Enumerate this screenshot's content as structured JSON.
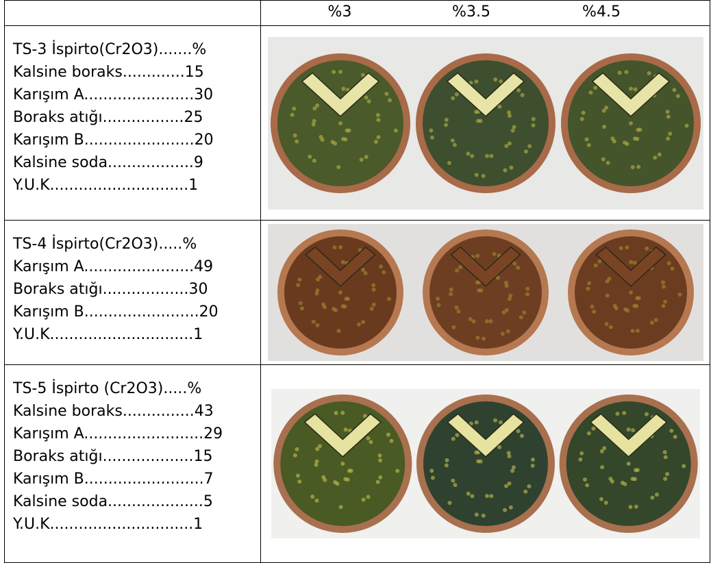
{
  "table": {
    "header": [
      "%3",
      "%3.5",
      "%4.5"
    ],
    "rows": [
      {
        "lines": [
          "TS-3 İspirto(Cr2O3).......%",
          "Kalsine boraks.............15",
          "Karışım A.......................30",
          "Boraks atığı.................25",
          "Karışım B.......................20",
          "Kalsine soda..................9",
          "Y.U.K.............................1"
        ]
      },
      {
        "lines": [
          "TS-4 İspirto(Cr2O3).....%",
          "Karışım A.......................49",
          "Boraks atığı..................30",
          "Karışım B........................20",
          "Y.U.K..............................1"
        ]
      },
      {
        "lines": [
          "TS-5 İspirto (Cr2O3).....%",
          "Kalsine boraks...............43",
          "Karışım A.........................29",
          "Boraks atığı...................15",
          "Karışım B.........................7",
          "Kalsine soda....................5",
          "Y.U.K..............................1"
        ]
      }
    ]
  }
}
